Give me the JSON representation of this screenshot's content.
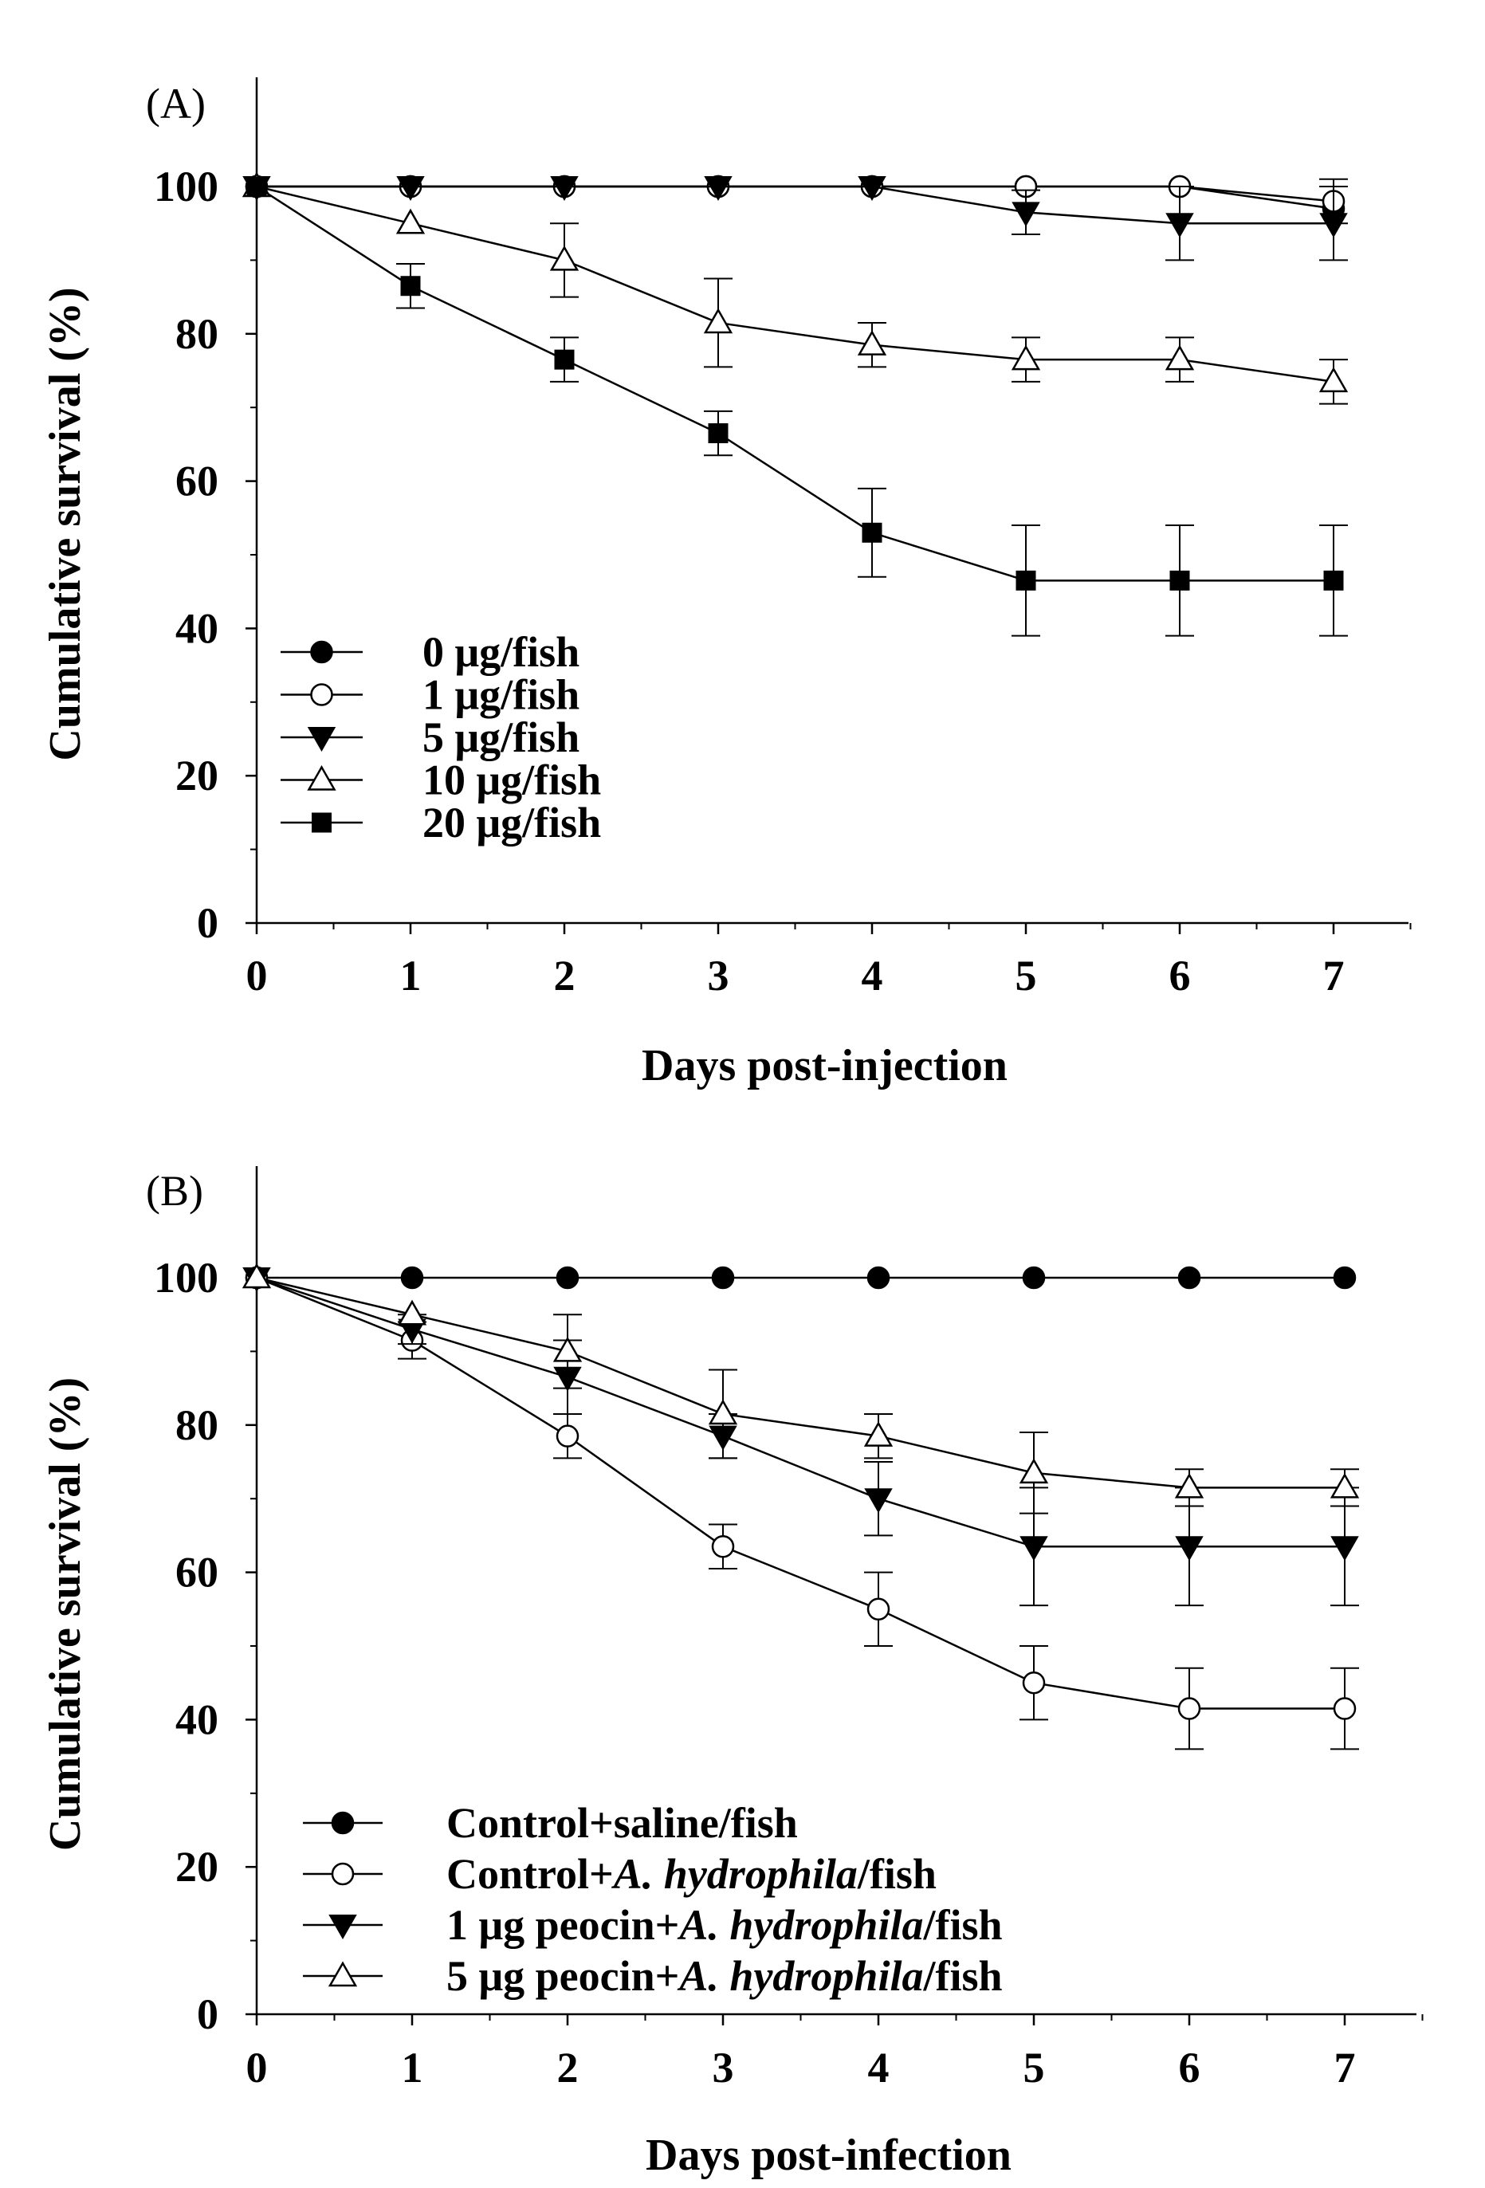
{
  "chart_data": [
    {
      "panel_label": "(A)",
      "type": "line",
      "xlabel": "Days post-injection",
      "ylabel": "Cumulative survival (%)",
      "xlim": [
        0,
        7.5
      ],
      "ylim": [
        0,
        100
      ],
      "x": [
        0,
        1,
        2,
        3,
        4,
        5,
        6,
        7
      ],
      "x_ticks": [
        "0",
        "1",
        "2",
        "3",
        "4",
        "5",
        "6",
        "7"
      ],
      "y_ticks": [
        "0",
        "20",
        "40",
        "60",
        "80",
        "100"
      ],
      "series": [
        {
          "name": "0   μg/fish",
          "marker": "filled-circle",
          "values": [
            100,
            100,
            100,
            100,
            100,
            100,
            100,
            97
          ],
          "errors": [
            0,
            0,
            0,
            0,
            0,
            0,
            0,
            0
          ]
        },
        {
          "name": "1   μg/fish",
          "marker": "open-circle",
          "values": [
            100,
            100,
            100,
            100,
            100,
            100,
            100,
            98
          ],
          "errors": [
            0,
            0,
            0,
            0,
            0,
            0,
            0,
            3
          ]
        },
        {
          "name": "5   μg/fish",
          "marker": "filled-triangle-down",
          "values": [
            100,
            100,
            100,
            100,
            100,
            96.5,
            95,
            95
          ],
          "errors": [
            0,
            0,
            0,
            0,
            0,
            3,
            5,
            5
          ]
        },
        {
          "name": "10 μg/fish",
          "marker": "open-triangle-up",
          "values": [
            100,
            95,
            90,
            81.5,
            78.5,
            76.5,
            76.5,
            73.5
          ],
          "errors": [
            0,
            0,
            5,
            6,
            3,
            3,
            3,
            3
          ]
        },
        {
          "name": "20 μg/fish",
          "marker": "filled-square",
          "values": [
            100,
            86.5,
            76.5,
            66.5,
            53,
            46.5,
            46.5,
            46.5
          ],
          "errors": [
            0,
            3,
            3,
            3,
            6,
            7.5,
            7.5,
            7.5
          ]
        }
      ]
    },
    {
      "panel_label": "(B)",
      "type": "line",
      "xlabel": "Days post-infection",
      "ylabel": "Cumulative survival (%)",
      "xlim": [
        0,
        7.5
      ],
      "ylim": [
        0,
        100
      ],
      "x": [
        0,
        1,
        2,
        3,
        4,
        5,
        6,
        7
      ],
      "x_ticks": [
        "0",
        "1",
        "2",
        "3",
        "4",
        "5",
        "6",
        "7"
      ],
      "y_ticks": [
        "0",
        "20",
        "40",
        "60",
        "80",
        "100"
      ],
      "series": [
        {
          "name": "Control+saline/fish",
          "legend_parts": [
            {
              "t": "Control+saline/fish",
              "i": false
            }
          ],
          "marker": "filled-circle",
          "values": [
            100,
            100,
            100,
            100,
            100,
            100,
            100,
            100
          ],
          "errors": [
            0,
            0,
            0,
            0,
            0,
            0,
            0,
            0
          ]
        },
        {
          "name": "Control+A. hydrophila/fish",
          "legend_parts": [
            {
              "t": "Control+",
              "i": false
            },
            {
              "t": "A. hydrophila",
              "i": true
            },
            {
              "t": "/fish",
              "i": false
            }
          ],
          "marker": "open-circle",
          "values": [
            100,
            91.5,
            78.5,
            63.5,
            55,
            45,
            41.5,
            41.5
          ],
          "errors": [
            0,
            2.5,
            3,
            3,
            5,
            5,
            5.5,
            5.5
          ]
        },
        {
          "name": "1 μg peocin+A. hydrophila/fish",
          "legend_parts": [
            {
              "t": "1 μg peocin+",
              "i": false
            },
            {
              "t": "A. hydrophila",
              "i": true
            },
            {
              "t": "/fish",
              "i": false
            }
          ],
          "marker": "filled-triangle-down",
          "values": [
            100,
            93,
            86.5,
            78.5,
            70,
            63.5,
            63.5,
            63.5
          ],
          "errors": [
            0,
            2,
            5,
            3,
            5,
            8,
            8,
            8
          ]
        },
        {
          "name": "5 μg peocin+A. hydrophila/fish",
          "legend_parts": [
            {
              "t": "5 μg peocin+",
              "i": false
            },
            {
              "t": "A. hydrophila",
              "i": true
            },
            {
              "t": "/fish",
              "i": false
            }
          ],
          "marker": "open-triangle-up",
          "values": [
            100,
            95,
            90,
            81.5,
            78.5,
            73.5,
            71.5,
            71.5
          ],
          "errors": [
            0,
            0,
            5,
            6,
            3,
            5.5,
            2.5,
            2.5
          ]
        }
      ]
    }
  ]
}
